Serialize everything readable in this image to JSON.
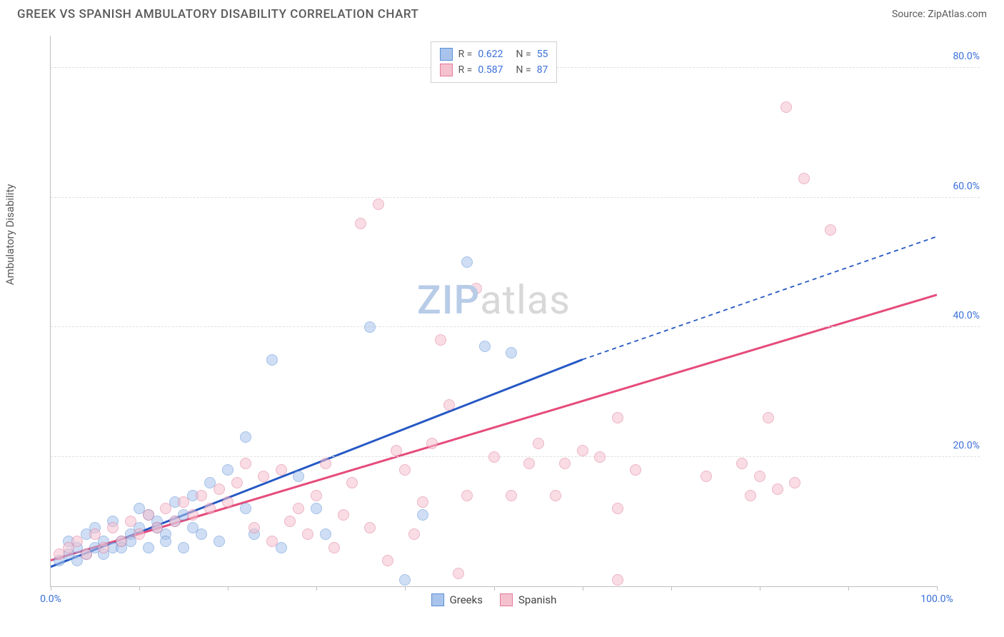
{
  "header": {
    "title": "GREEK VS SPANISH AMBULATORY DISABILITY CORRELATION CHART",
    "source_label": "Source: ",
    "source_name": "ZipAtlas.com"
  },
  "chart": {
    "type": "scatter",
    "ylabel": "Ambulatory Disability",
    "xlim": [
      0,
      100
    ],
    "ylim": [
      0,
      85
    ],
    "ytick_values": [
      20,
      40,
      60,
      80
    ],
    "ytick_labels": [
      "20.0%",
      "40.0%",
      "60.0%",
      "80.0%"
    ],
    "xtick_values": [
      0,
      10,
      20,
      30,
      40,
      50,
      60,
      70,
      80,
      90,
      100
    ],
    "xtick_label_left": "0.0%",
    "xtick_label_right": "100.0%",
    "grid_color": "#e0e0e0",
    "axis_color": "#bfbfbf",
    "marker_radius": 8,
    "marker_opacity": 0.55,
    "background_color": "#ffffff",
    "watermark": {
      "zip": "ZIP",
      "atlas": "atlas"
    },
    "series": [
      {
        "name": "Greeks",
        "fill": "#a9c4ec",
        "stroke": "#5b8fd6",
        "trend": {
          "color": "#2558c4",
          "width": 3,
          "start": [
            0,
            3
          ],
          "solid_end": [
            60,
            35
          ],
          "dash_end": [
            100,
            54
          ]
        },
        "r_value": "0.622",
        "n_value": "55",
        "points": [
          [
            1,
            4
          ],
          [
            2,
            5
          ],
          [
            3,
            6
          ],
          [
            2,
            7
          ],
          [
            4,
            5
          ],
          [
            5,
            6
          ],
          [
            3,
            4
          ],
          [
            6,
            7
          ],
          [
            4,
            8
          ],
          [
            7,
            6
          ],
          [
            5,
            9
          ],
          [
            8,
            7
          ],
          [
            6,
            5
          ],
          [
            9,
            8
          ],
          [
            7,
            10
          ],
          [
            10,
            9
          ],
          [
            8,
            6
          ],
          [
            11,
            11
          ],
          [
            9,
            7
          ],
          [
            12,
            10
          ],
          [
            10,
            12
          ],
          [
            13,
            8
          ],
          [
            11,
            6
          ],
          [
            14,
            13
          ],
          [
            12,
            9
          ],
          [
            15,
            11
          ],
          [
            13,
            7
          ],
          [
            16,
            14
          ],
          [
            14,
            10
          ],
          [
            17,
            8
          ],
          [
            15,
            6
          ],
          [
            18,
            16
          ],
          [
            16,
            9
          ],
          [
            19,
            7
          ],
          [
            20,
            18
          ],
          [
            22,
            12
          ],
          [
            22,
            23
          ],
          [
            23,
            8
          ],
          [
            25,
            35
          ],
          [
            26,
            6
          ],
          [
            28,
            17
          ],
          [
            36,
            40
          ],
          [
            30,
            12
          ],
          [
            31,
            8
          ],
          [
            40,
            1
          ],
          [
            42,
            11
          ],
          [
            47,
            50
          ],
          [
            49,
            37
          ],
          [
            52,
            36
          ]
        ]
      },
      {
        "name": "Spanish",
        "fill": "#f5c1cf",
        "stroke": "#e07a9a",
        "trend": {
          "color": "#e54b7b",
          "width": 3,
          "start": [
            0,
            4
          ],
          "solid_end": [
            100,
            45
          ],
          "dash_end": null
        },
        "r_value": "0.587",
        "n_value": "87",
        "points": [
          [
            1,
            5
          ],
          [
            2,
            6
          ],
          [
            3,
            7
          ],
          [
            4,
            5
          ],
          [
            5,
            8
          ],
          [
            6,
            6
          ],
          [
            7,
            9
          ],
          [
            8,
            7
          ],
          [
            9,
            10
          ],
          [
            10,
            8
          ],
          [
            11,
            11
          ],
          [
            12,
            9
          ],
          [
            13,
            12
          ],
          [
            14,
            10
          ],
          [
            15,
            13
          ],
          [
            16,
            11
          ],
          [
            17,
            14
          ],
          [
            18,
            12
          ],
          [
            19,
            15
          ],
          [
            20,
            13
          ],
          [
            21,
            16
          ],
          [
            22,
            19
          ],
          [
            23,
            9
          ],
          [
            24,
            17
          ],
          [
            25,
            7
          ],
          [
            26,
            18
          ],
          [
            27,
            10
          ],
          [
            28,
            12
          ],
          [
            29,
            8
          ],
          [
            30,
            14
          ],
          [
            31,
            19
          ],
          [
            32,
            6
          ],
          [
            33,
            11
          ],
          [
            34,
            16
          ],
          [
            35,
            56
          ],
          [
            36,
            9
          ],
          [
            37,
            59
          ],
          [
            38,
            4
          ],
          [
            39,
            21
          ],
          [
            40,
            18
          ],
          [
            41,
            8
          ],
          [
            42,
            13
          ],
          [
            43,
            22
          ],
          [
            44,
            38
          ],
          [
            45,
            28
          ],
          [
            46,
            2
          ],
          [
            47,
            14
          ],
          [
            48,
            46
          ],
          [
            50,
            20
          ],
          [
            52,
            14
          ],
          [
            54,
            19
          ],
          [
            55,
            22
          ],
          [
            57,
            14
          ],
          [
            58,
            19
          ],
          [
            60,
            21
          ],
          [
            62,
            20
          ],
          [
            64,
            12
          ],
          [
            64,
            26
          ],
          [
            66,
            18
          ],
          [
            74,
            17
          ],
          [
            78,
            19
          ],
          [
            79,
            14
          ],
          [
            80,
            17
          ],
          [
            81,
            26
          ],
          [
            82,
            15
          ],
          [
            83,
            74
          ],
          [
            84,
            16
          ],
          [
            85,
            63
          ],
          [
            88,
            55
          ],
          [
            64,
            1
          ]
        ]
      }
    ],
    "legend_top": {
      "r_label": "R =",
      "n_label": "N ="
    },
    "legend_bottom": {
      "items": [
        "Greeks",
        "Spanish"
      ]
    }
  }
}
